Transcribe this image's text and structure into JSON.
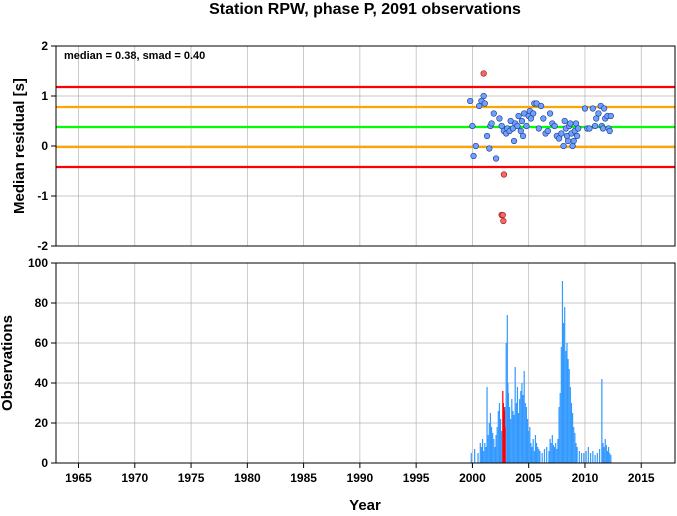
{
  "title": "Station RPW, phase P, 2091 observations",
  "xlabel": "Year",
  "colors": {
    "grid": "#b4b4b4",
    "red_line": "#ff0000",
    "orange_line": "#ffa500",
    "green_line": "#00ff00",
    "point_fill": "#6ea0ff",
    "point_outlier_fill": "#ff6464",
    "bar_normal": "#3399ff",
    "bar_outlier": "#ff0000"
  },
  "chart_data": [
    {
      "type": "scatter",
      "panel": "top",
      "ylabel": "Median residual [s]",
      "annotation": "median = 0.38, smad = 0.40",
      "xlim": [
        1963,
        2018
      ],
      "ylim": [
        -2,
        2
      ],
      "x_ticks": [
        1965,
        1970,
        1975,
        1980,
        1985,
        1990,
        1995,
        2000,
        2005,
        2010,
        2015
      ],
      "y_ticks": [
        -2,
        -1,
        0,
        1,
        2
      ],
      "grid": true,
      "hlines": [
        {
          "y": 1.18,
          "color": "red"
        },
        {
          "y": 0.78,
          "color": "orange"
        },
        {
          "y": 0.38,
          "color": "green"
        },
        {
          "y": -0.02,
          "color": "orange"
        },
        {
          "y": -0.42,
          "color": "red"
        }
      ],
      "points_normal": [
        [
          1999.8,
          0.9
        ],
        [
          2000.0,
          0.4
        ],
        [
          2000.1,
          -0.2
        ],
        [
          2000.3,
          0.0
        ],
        [
          2000.6,
          0.8
        ],
        [
          2000.8,
          0.9
        ],
        [
          2001.0,
          1.0
        ],
        [
          2001.1,
          0.85
        ],
        [
          2001.3,
          0.2
        ],
        [
          2001.5,
          -0.05
        ],
        [
          2001.6,
          0.4
        ],
        [
          2001.7,
          0.45
        ],
        [
          2001.9,
          0.65
        ],
        [
          2002.1,
          -0.25
        ],
        [
          2002.4,
          0.55
        ],
        [
          2002.6,
          0.4
        ],
        [
          2002.8,
          0.3
        ],
        [
          2003.0,
          0.25
        ],
        [
          2003.1,
          0.35
        ],
        [
          2003.3,
          0.3
        ],
        [
          2003.4,
          0.5
        ],
        [
          2003.6,
          0.35
        ],
        [
          2003.7,
          0.1
        ],
        [
          2003.8,
          0.45
        ],
        [
          2004.0,
          0.4
        ],
        [
          2004.1,
          0.6
        ],
        [
          2004.3,
          0.3
        ],
        [
          2004.4,
          0.5
        ],
        [
          2004.5,
          0.2
        ],
        [
          2004.6,
          0.65
        ],
        [
          2004.8,
          0.4
        ],
        [
          2005.0,
          0.6
        ],
        [
          2005.1,
          0.7
        ],
        [
          2005.2,
          0.55
        ],
        [
          2005.4,
          0.65
        ],
        [
          2005.5,
          0.85
        ],
        [
          2005.7,
          0.85
        ],
        [
          2005.9,
          0.35
        ],
        [
          2006.1,
          0.8
        ],
        [
          2006.3,
          0.55
        ],
        [
          2006.5,
          0.25
        ],
        [
          2006.7,
          0.3
        ],
        [
          2006.9,
          0.65
        ],
        [
          2007.1,
          0.45
        ],
        [
          2007.3,
          0.4
        ],
        [
          2007.5,
          0.2
        ],
        [
          2007.7,
          0.15
        ],
        [
          2007.9,
          0.25
        ],
        [
          2008.1,
          0.0
        ],
        [
          2008.2,
          0.5
        ],
        [
          2008.3,
          0.35
        ],
        [
          2008.4,
          0.2
        ],
        [
          2008.5,
          0.1
        ],
        [
          2008.6,
          0.4
        ],
        [
          2008.7,
          0.45
        ],
        [
          2008.8,
          0.25
        ],
        [
          2008.9,
          0.0
        ],
        [
          2009.0,
          0.1
        ],
        [
          2009.1,
          0.3
        ],
        [
          2009.2,
          0.45
        ],
        [
          2009.3,
          0.2
        ],
        [
          2009.4,
          0.35
        ],
        [
          2010.0,
          0.75
        ],
        [
          2010.2,
          0.35
        ],
        [
          2010.4,
          0.35
        ],
        [
          2010.7,
          0.75
        ],
        [
          2010.9,
          0.4
        ],
        [
          2011.0,
          0.55
        ],
        [
          2011.2,
          0.65
        ],
        [
          2011.4,
          0.8
        ],
        [
          2011.5,
          0.4
        ],
        [
          2011.6,
          0.35
        ],
        [
          2011.7,
          0.75
        ],
        [
          2011.8,
          0.55
        ],
        [
          2012.0,
          0.6
        ],
        [
          2012.1,
          0.35
        ],
        [
          2012.2,
          0.3
        ],
        [
          2012.3,
          0.6
        ]
      ],
      "points_outlier": [
        [
          2001.0,
          1.45
        ],
        [
          2002.6,
          -1.38
        ],
        [
          2002.7,
          -1.38
        ],
        [
          2002.8,
          -0.57
        ],
        [
          2002.75,
          -1.5
        ]
      ]
    },
    {
      "type": "bar",
      "panel": "bottom",
      "ylabel": "Observations",
      "xlim": [
        1963,
        2018
      ],
      "ylim": [
        0,
        100
      ],
      "x_ticks": [
        1965,
        1970,
        1975,
        1980,
        1985,
        1990,
        1995,
        2000,
        2005,
        2010,
        2015
      ],
      "y_ticks": [
        0,
        20,
        40,
        60,
        80,
        100
      ],
      "grid": true,
      "bars_normal": [
        [
          1999.9,
          5
        ],
        [
          2000.2,
          7
        ],
        [
          2000.5,
          5
        ],
        [
          2000.7,
          10
        ],
        [
          2000.8,
          8
        ],
        [
          2000.9,
          12
        ],
        [
          2001.0,
          6
        ],
        [
          2001.1,
          10
        ],
        [
          2001.2,
          8
        ],
        [
          2001.3,
          38
        ],
        [
          2001.4,
          14
        ],
        [
          2001.5,
          20
        ],
        [
          2001.6,
          25
        ],
        [
          2001.7,
          18
        ],
        [
          2001.8,
          15
        ],
        [
          2001.9,
          12
        ],
        [
          2002.0,
          8
        ],
        [
          2002.1,
          14
        ],
        [
          2002.2,
          18
        ],
        [
          2002.3,
          26
        ],
        [
          2002.4,
          30
        ],
        [
          2002.5,
          22
        ],
        [
          2002.6,
          16
        ],
        [
          2002.9,
          28
        ],
        [
          2003.0,
          60
        ],
        [
          2003.1,
          74
        ],
        [
          2003.15,
          40
        ],
        [
          2003.2,
          35
        ],
        [
          2003.3,
          28
        ],
        [
          2003.4,
          22
        ],
        [
          2003.5,
          32
        ],
        [
          2003.6,
          26
        ],
        [
          2003.7,
          24
        ],
        [
          2003.8,
          48
        ],
        [
          2003.9,
          30
        ],
        [
          2004.0,
          38
        ],
        [
          2004.1,
          25
        ],
        [
          2004.2,
          32
        ],
        [
          2004.3,
          36
        ],
        [
          2004.4,
          40
        ],
        [
          2004.5,
          34
        ],
        [
          2004.6,
          46
        ],
        [
          2004.7,
          30
        ],
        [
          2004.8,
          28
        ],
        [
          2004.9,
          22
        ],
        [
          2005.0,
          16
        ],
        [
          2005.1,
          18
        ],
        [
          2005.2,
          10
        ],
        [
          2005.3,
          8
        ],
        [
          2005.4,
          12
        ],
        [
          2005.5,
          6
        ],
        [
          2005.6,
          14
        ],
        [
          2005.7,
          10
        ],
        [
          2005.8,
          8
        ],
        [
          2005.9,
          7
        ],
        [
          2006.0,
          6
        ],
        [
          2006.2,
          5
        ],
        [
          2006.4,
          7
        ],
        [
          2006.6,
          8
        ],
        [
          2006.8,
          6
        ],
        [
          2006.9,
          12
        ],
        [
          2007.0,
          10
        ],
        [
          2007.1,
          14
        ],
        [
          2007.2,
          9
        ],
        [
          2007.3,
          8
        ],
        [
          2007.4,
          10
        ],
        [
          2007.5,
          7
        ],
        [
          2007.6,
          12
        ],
        [
          2007.7,
          28
        ],
        [
          2007.8,
          35
        ],
        [
          2007.9,
          58
        ],
        [
          2008.0,
          91
        ],
        [
          2008.1,
          70
        ],
        [
          2008.2,
          78
        ],
        [
          2008.3,
          56
        ],
        [
          2008.4,
          60
        ],
        [
          2008.5,
          52
        ],
        [
          2008.6,
          47
        ],
        [
          2008.7,
          38
        ],
        [
          2008.8,
          30
        ],
        [
          2008.9,
          25
        ],
        [
          2009.0,
          18
        ],
        [
          2009.1,
          15
        ],
        [
          2009.2,
          10
        ],
        [
          2009.3,
          8
        ],
        [
          2009.5,
          6
        ],
        [
          2009.7,
          5
        ],
        [
          2009.9,
          5
        ],
        [
          2010.1,
          6
        ],
        [
          2010.3,
          8
        ],
        [
          2010.5,
          5
        ],
        [
          2010.7,
          6
        ],
        [
          2010.9,
          4
        ],
        [
          2011.1,
          5
        ],
        [
          2011.3,
          7
        ],
        [
          2011.5,
          42
        ],
        [
          2011.6,
          10
        ],
        [
          2011.7,
          8
        ],
        [
          2011.8,
          12
        ],
        [
          2011.9,
          9
        ],
        [
          2012.0,
          6
        ],
        [
          2012.1,
          8
        ],
        [
          2012.2,
          5
        ],
        [
          2012.3,
          4
        ]
      ],
      "bars_outlier": [
        [
          2002.7,
          36
        ],
        [
          2002.75,
          30
        ],
        [
          2002.8,
          28
        ],
        [
          2002.85,
          26
        ],
        [
          2002.9,
          18
        ]
      ]
    }
  ]
}
